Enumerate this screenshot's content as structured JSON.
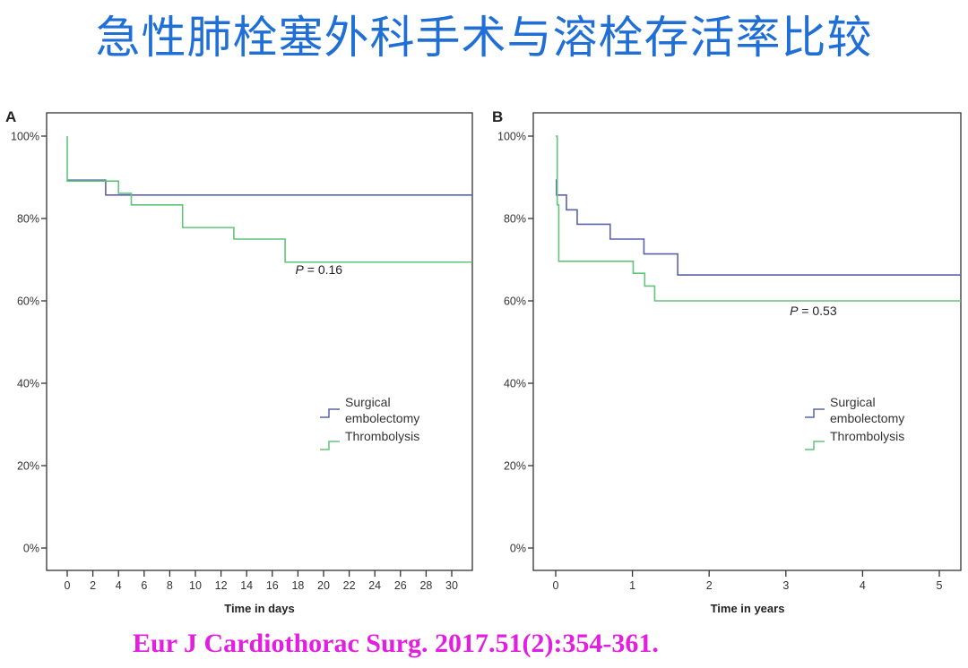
{
  "title": "急性肺栓塞外科手术与溶栓存活率比较",
  "citation": "Eur J Cardiothorac Surg. 2017.51(2):354-361.",
  "colors": {
    "title": "#1f6fd6",
    "citation": "#e21ee0",
    "surgical": "#5a63aa",
    "thrombolysis": "#62c47a"
  },
  "chart_data": [
    {
      "type": "line",
      "step": true,
      "panel_label": "A",
      "xlabel": "Time in days",
      "ylabel": "",
      "xlim": [
        0,
        31.6
      ],
      "ylim": [
        0,
        100
      ],
      "xticks": [
        0,
        2,
        4,
        6,
        8,
        10,
        12,
        14,
        16,
        18,
        20,
        22,
        24,
        26,
        28,
        30
      ],
      "yticks": [
        0,
        20,
        40,
        60,
        80,
        100
      ],
      "ytick_labels": [
        "0%",
        "20%",
        "40%",
        "60%",
        "80%",
        "100%"
      ],
      "annotation": {
        "text_italic": "P",
        "text": " = 0.16",
        "x": 17.8,
        "y": 66.5
      },
      "legend": {
        "placement": "center-right",
        "entries": [
          "Surgical\nembolectomy",
          "Thrombolysis"
        ]
      },
      "series": [
        {
          "name": "Surgical embolectomy",
          "x": [
            0,
            3,
            31.6
          ],
          "y": [
            89.3,
            85.7,
            85.7
          ]
        },
        {
          "name": "Thrombolysis",
          "x": [
            0,
            0,
            4,
            5,
            9,
            13,
            17,
            31.6
          ],
          "y": [
            100,
            89.1,
            86.1,
            83.3,
            77.8,
            75.0,
            69.4,
            69.4
          ]
        }
      ]
    },
    {
      "type": "line",
      "step": true,
      "panel_label": "B",
      "xlabel": "Time in years",
      "ylabel": "",
      "xlim": [
        0,
        5.28
      ],
      "ylim": [
        0,
        100
      ],
      "xticks": [
        0,
        1,
        2,
        3,
        4,
        5
      ],
      "yticks": [
        0,
        20,
        40,
        60,
        80,
        100
      ],
      "ytick_labels": [
        "0%",
        "20%",
        "40%",
        "60%",
        "80%",
        "100%"
      ],
      "annotation": {
        "text_italic": "P",
        "text": " = 0.53",
        "x": 3.05,
        "y": 56.5
      },
      "legend": {
        "placement": "center-right",
        "entries": [
          "Surgical\nembolectomy",
          "Thrombolysis"
        ]
      },
      "series": [
        {
          "name": "Surgical embolectomy",
          "x": [
            0,
            0.01,
            0.14,
            0.28,
            0.71,
            1.15,
            1.59,
            5.28
          ],
          "y": [
            89.3,
            85.7,
            82.1,
            78.6,
            75.0,
            71.4,
            66.3,
            66.3
          ]
        },
        {
          "name": "Thrombolysis",
          "x": [
            0,
            0.02,
            0.04,
            1.01,
            1.16,
            1.29,
            5.28
          ],
          "y": [
            100,
            83.3,
            69.6,
            66.7,
            63.6,
            60.0,
            60.0
          ]
        }
      ]
    }
  ]
}
